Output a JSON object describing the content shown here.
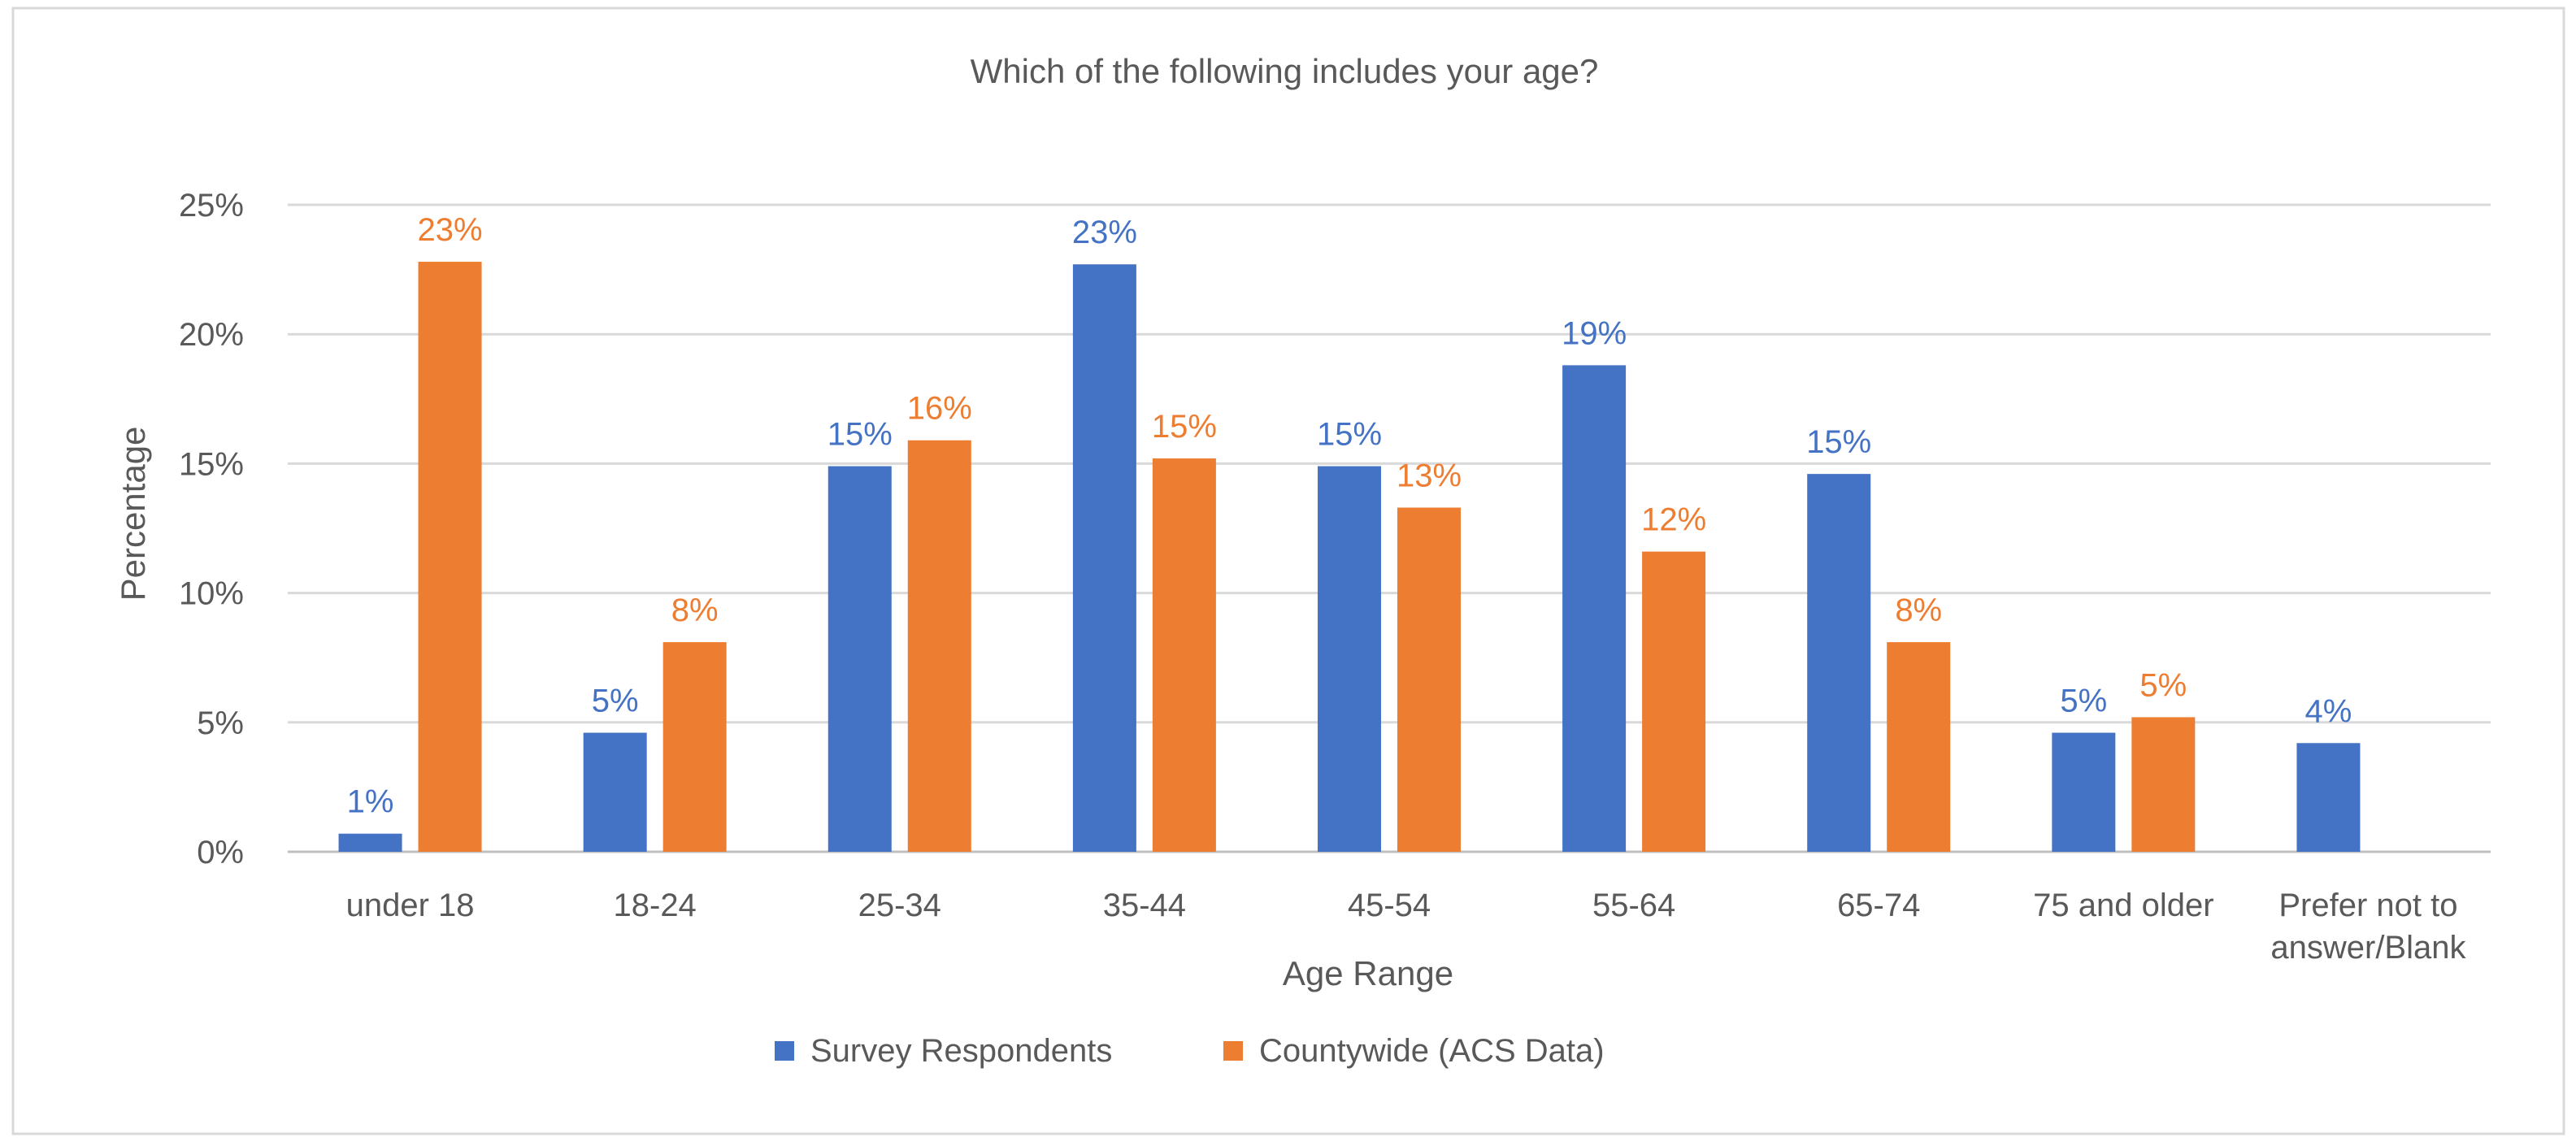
{
  "chart_data": {
    "type": "bar",
    "title": "Which of the following includes your age?",
    "xlabel": "Age Range",
    "ylabel": "Percentage",
    "categories": [
      "under 18",
      "18-24",
      "25-34",
      "35-44",
      "45-54",
      "55-64",
      "65-74",
      "75 and older",
      "Prefer not to answer/Blank"
    ],
    "category_lines": [
      [
        "under 18"
      ],
      [
        "18-24"
      ],
      [
        "25-34"
      ],
      [
        "35-44"
      ],
      [
        "45-54"
      ],
      [
        "55-64"
      ],
      [
        "65-74"
      ],
      [
        "75 and older"
      ],
      [
        "Prefer not to",
        "answer/Blank"
      ]
    ],
    "series": [
      {
        "name": "Survey Respondents",
        "color": "#4472C4",
        "values": [
          0.7,
          4.6,
          14.9,
          22.7,
          14.9,
          18.8,
          14.6,
          4.6,
          4.2
        ],
        "labels": [
          "1%",
          "5%",
          "15%",
          "23%",
          "15%",
          "19%",
          "15%",
          "5%",
          "4%"
        ]
      },
      {
        "name": "Countywide (ACS Data)",
        "color": "#ED7D31",
        "values": [
          22.8,
          8.1,
          15.9,
          15.2,
          13.3,
          11.6,
          8.1,
          5.2,
          null
        ],
        "labels": [
          "23%",
          "8%",
          "16%",
          "15%",
          "13%",
          "12%",
          "8%",
          "5%",
          ""
        ]
      }
    ],
    "ylim": [
      0,
      25
    ],
    "yticks": [
      0,
      5,
      10,
      15,
      20,
      25
    ],
    "ytick_labels": [
      "0%",
      "5%",
      "10%",
      "15%",
      "20%",
      "25%"
    ],
    "grid": true,
    "legend_position": "bottom"
  }
}
